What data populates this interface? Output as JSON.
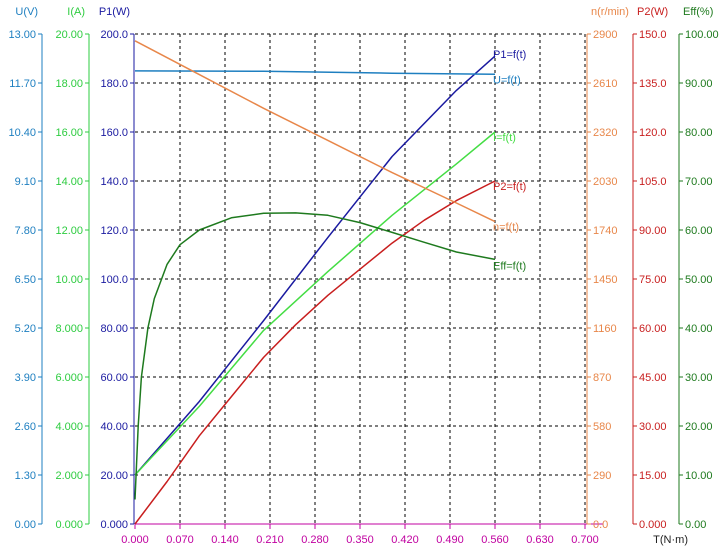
{
  "chart_data": {
    "type": "line",
    "x_axis": {
      "label": "T(N·m)",
      "ticks": [
        "0.000",
        "0.070",
        "0.140",
        "0.210",
        "0.280",
        "0.350",
        "0.420",
        "0.490",
        "0.560",
        "0.630",
        "0.700"
      ],
      "range": [
        0,
        0.7
      ],
      "color": "#c000a0"
    },
    "y_axes": [
      {
        "id": "U",
        "label": "U(V)",
        "side": "left",
        "color": "#1e7fc0",
        "range": [
          0,
          13
        ],
        "ticks": [
          "0.00",
          "1.30",
          "2.60",
          "3.90",
          "5.20",
          "6.50",
          "7.80",
          "9.10",
          "10.40",
          "11.70",
          "13.00"
        ]
      },
      {
        "id": "I",
        "label": "I(A)",
        "side": "left",
        "color": "#2ecc40",
        "range": [
          0,
          20
        ],
        "ticks": [
          "0.000",
          "2.000",
          "4.000",
          "6.000",
          "8.000",
          "10.00",
          "12.00",
          "14.00",
          "16.00",
          "18.00",
          "20.00"
        ]
      },
      {
        "id": "P1",
        "label": "P1(W)",
        "side": "left",
        "color": "#1a1aa0",
        "range": [
          0,
          200
        ],
        "ticks": [
          "0.000",
          "20.00",
          "40.00",
          "60.00",
          "80.00",
          "100.0",
          "120.0",
          "140.0",
          "160.0",
          "180.0",
          "200.0"
        ]
      },
      {
        "id": "n",
        "label": "n(r/min)",
        "side": "right",
        "color": "#e8874a",
        "range": [
          0,
          2900
        ],
        "ticks": [
          "0.0",
          "290",
          "580",
          "870",
          "1160",
          "1450",
          "1740",
          "2030",
          "2320",
          "2610",
          "2900"
        ]
      },
      {
        "id": "P2",
        "label": "P2(W)",
        "side": "right",
        "color": "#c81e1e",
        "range": [
          0,
          150
        ],
        "ticks": [
          "0.000",
          "15.00",
          "30.00",
          "45.00",
          "60.00",
          "75.00",
          "90.00",
          "105.0",
          "120.0",
          "135.0",
          "150.0"
        ]
      },
      {
        "id": "Eff",
        "label": "Eff(%)",
        "side": "right",
        "color": "#1e7a1e",
        "range": [
          0,
          100
        ],
        "ticks": [
          "0.00",
          "10.00",
          "20.00",
          "30.00",
          "40.00",
          "50.00",
          "60.00",
          "70.00",
          "80.00",
          "90.00",
          "100.00"
        ]
      }
    ],
    "grid": true,
    "series": [
      {
        "name": "P1=f(t)",
        "axis": "P1",
        "color": "#1a1aa0",
        "points": [
          [
            0,
            20
          ],
          [
            0.1,
            50
          ],
          [
            0.2,
            83
          ],
          [
            0.3,
            117
          ],
          [
            0.4,
            150
          ],
          [
            0.5,
            177
          ],
          [
            0.56,
            191
          ]
        ]
      },
      {
        "name": "U=f(t)",
        "axis": "U",
        "color": "#1e7fc0",
        "points": [
          [
            0,
            12.02
          ],
          [
            0.2,
            12.01
          ],
          [
            0.4,
            11.96
          ],
          [
            0.56,
            11.93
          ]
        ]
      },
      {
        "name": "I=f(t)",
        "axis": "I",
        "color": "#44dd44",
        "points": [
          [
            0,
            2.0
          ],
          [
            0.1,
            4.8
          ],
          [
            0.2,
            7.9
          ],
          [
            0.3,
            10.3
          ],
          [
            0.4,
            12.6
          ],
          [
            0.5,
            14.7
          ],
          [
            0.56,
            16.0
          ]
        ]
      },
      {
        "name": "P2=f(t)",
        "axis": "P2",
        "color": "#c81e1e",
        "points": [
          [
            0,
            0
          ],
          [
            0.05,
            13
          ],
          [
            0.1,
            27
          ],
          [
            0.15,
            39
          ],
          [
            0.2,
            51
          ],
          [
            0.25,
            61
          ],
          [
            0.3,
            70
          ],
          [
            0.35,
            78
          ],
          [
            0.4,
            86
          ],
          [
            0.45,
            93
          ],
          [
            0.5,
            99
          ],
          [
            0.56,
            105
          ]
        ]
      },
      {
        "name": "n=f(t)",
        "axis": "n",
        "color": "#e8874a",
        "points": [
          [
            0,
            2860
          ],
          [
            0.1,
            2660
          ],
          [
            0.2,
            2460
          ],
          [
            0.3,
            2270
          ],
          [
            0.4,
            2080
          ],
          [
            0.5,
            1900
          ],
          [
            0.56,
            1790
          ]
        ]
      },
      {
        "name": "Eff=f(t)",
        "axis": "Eff",
        "color": "#1e7a1e",
        "points": [
          [
            0,
            5
          ],
          [
            0.005,
            20
          ],
          [
            0.01,
            30
          ],
          [
            0.02,
            40
          ],
          [
            0.03,
            46
          ],
          [
            0.05,
            53
          ],
          [
            0.07,
            57
          ],
          [
            0.1,
            60
          ],
          [
            0.15,
            62.5
          ],
          [
            0.2,
            63.4
          ],
          [
            0.25,
            63.5
          ],
          [
            0.3,
            63
          ],
          [
            0.35,
            61.5
          ],
          [
            0.4,
            59.5
          ],
          [
            0.45,
            57.5
          ],
          [
            0.5,
            55.5
          ],
          [
            0.56,
            54
          ]
        ]
      }
    ]
  }
}
